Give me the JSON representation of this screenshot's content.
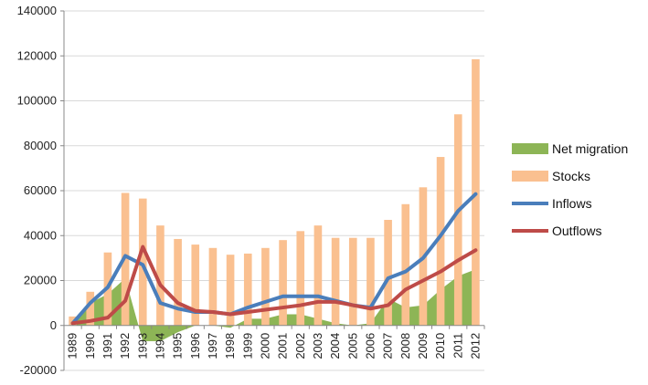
{
  "chart_data": {
    "type": "bar",
    "title": "",
    "xlabel": "",
    "ylabel": "",
    "ylim": [
      -20000,
      140000
    ],
    "yticks": [
      -20000,
      0,
      20000,
      40000,
      60000,
      80000,
      100000,
      120000,
      140000
    ],
    "grid": true,
    "legend_position": "right",
    "categories": [
      "1989",
      "1990",
      "1991",
      "1992",
      "1993",
      "1994",
      "1995",
      "1996",
      "1997",
      "1998",
      "1999",
      "2000",
      "2001",
      "2002",
      "2003",
      "2004",
      "2005",
      "2006",
      "2007",
      "2008",
      "2009",
      "2010",
      "2011",
      "2012"
    ],
    "series": [
      {
        "name": "Net migration",
        "kind": "area",
        "color": "#8DB556",
        "values": [
          1000,
          10000,
          14000,
          21000,
          -7000,
          -7000,
          -3000,
          0,
          0,
          -1000,
          3000,
          3000,
          5000,
          5000,
          3000,
          1000,
          0,
          1000,
          12000,
          8000,
          9000,
          16000,
          22000,
          25000
        ]
      },
      {
        "name": "Stocks",
        "kind": "bar",
        "color": "#FAC090",
        "values": [
          4000,
          15000,
          32500,
          59000,
          56500,
          44500,
          38500,
          36000,
          34500,
          31500,
          32000,
          34500,
          38000,
          42000,
          44500,
          39000,
          39000,
          39000,
          47000,
          54000,
          61500,
          75000,
          94000,
          118500
        ]
      },
      {
        "name": "Inflows",
        "kind": "line",
        "color": "#4A7EBB",
        "values": [
          1000,
          10000,
          17000,
          31000,
          27000,
          10000,
          7500,
          6000,
          6000,
          5000,
          8000,
          10500,
          13000,
          13000,
          13000,
          11000,
          9000,
          8000,
          21000,
          24000,
          30000,
          40000,
          51000,
          58500
        ]
      },
      {
        "name": "Outflows",
        "kind": "line",
        "color": "#BE4B48",
        "values": [
          1000,
          2000,
          3500,
          11000,
          35000,
          18000,
          10000,
          6500,
          6000,
          5000,
          6000,
          7000,
          8000,
          9000,
          10500,
          10500,
          9000,
          7500,
          9000,
          16000,
          20000,
          24000,
          29000,
          33500
        ]
      }
    ]
  }
}
